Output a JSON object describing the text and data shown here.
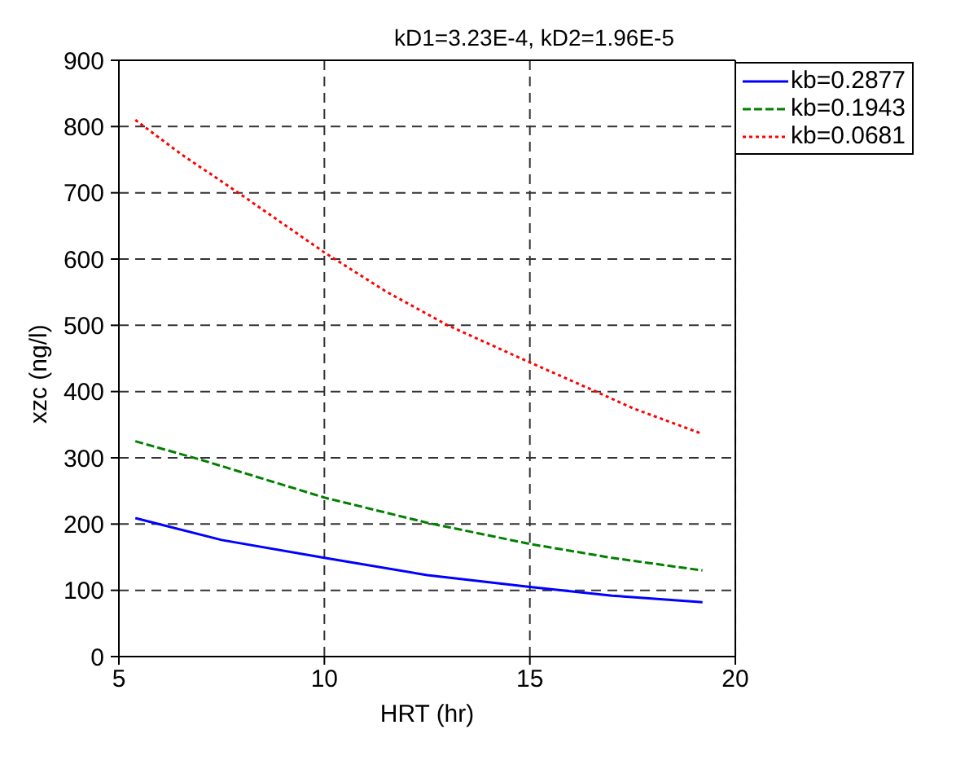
{
  "chart_data": {
    "type": "line",
    "title": "kD1=3.23E-4, kD2=1.96E-5",
    "xlabel": "HRT (hr)",
    "ylabel": "xzc (ng/l)",
    "xlim": [
      5,
      20
    ],
    "xticks": [
      5,
      10,
      15,
      20
    ],
    "ylim": [
      0,
      900
    ],
    "yticks": [
      0,
      100,
      200,
      300,
      400,
      500,
      600,
      700,
      800,
      900
    ],
    "grid": true,
    "legend": "top right",
    "marker": "none",
    "series": [
      {
        "name": "kb=0.2877",
        "color": "#0000ff",
        "line_style": "solid",
        "x": [
          5.4,
          7.5,
          10,
          12.5,
          15,
          17,
          19.2
        ],
        "values": [
          209,
          176,
          149,
          123,
          105,
          92,
          82
        ]
      },
      {
        "name": "kb=0.1943",
        "color": "#008000",
        "line_style": "dashed",
        "x": [
          5.4,
          7,
          10,
          12.5,
          15,
          17,
          19.2
        ],
        "values": [
          325,
          297,
          240,
          202,
          170,
          149,
          130
        ]
      },
      {
        "name": "kb=0.0681",
        "color": "#ff0000",
        "line_style": "dotted",
        "x": [
          5.4,
          6.5,
          8,
          10,
          11.5,
          13,
          15,
          16.5,
          17.5,
          19.2
        ],
        "values": [
          810,
          759,
          696,
          610,
          551,
          500,
          444,
          403,
          375,
          336
        ]
      }
    ]
  }
}
